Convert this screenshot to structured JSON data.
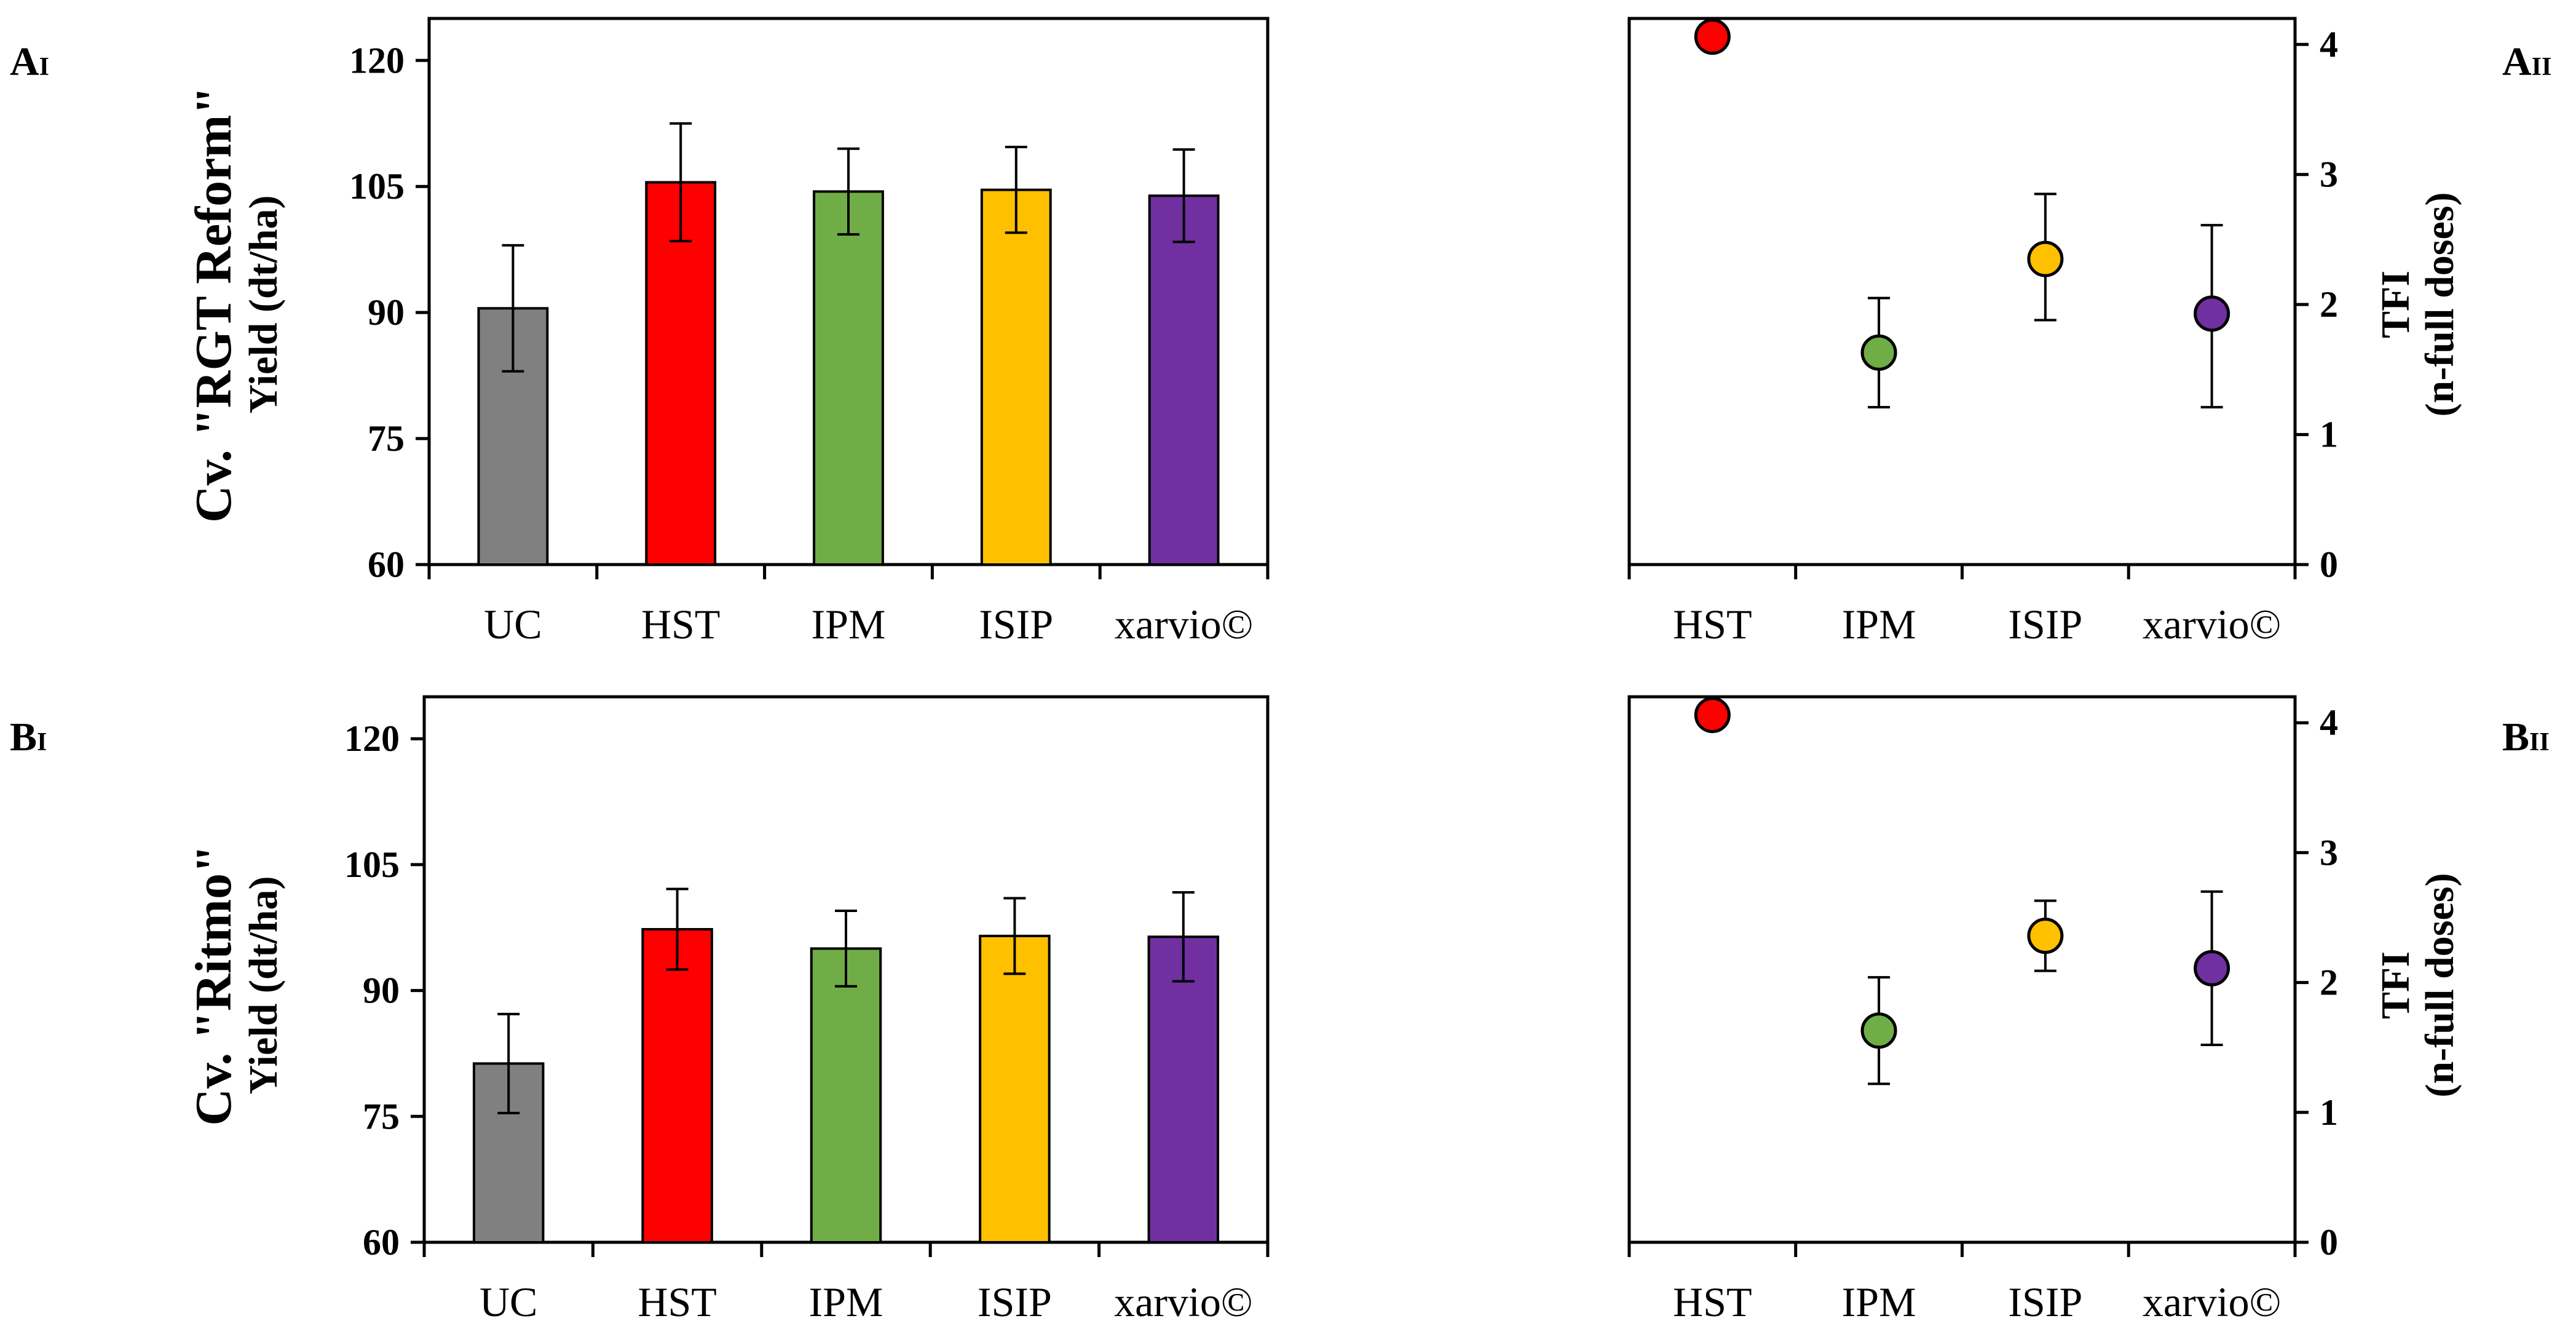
{
  "chart_data": [
    {
      "panel": "A",
      "panel_sub": "I",
      "type": "bar",
      "categories": [
        "UC",
        "HST",
        "IPM",
        "ISIP",
        "xarvio©"
      ],
      "values": [
        90.5,
        105.5,
        104.4,
        104.6,
        103.9
      ],
      "errors": [
        7.5,
        7.0,
        5.1,
        5.1,
        5.5
      ],
      "colors": [
        "#808080",
        "#FF0000",
        "#70AD47",
        "#FFC000",
        "#7030A0"
      ],
      "ylim": [
        60,
        125
      ],
      "yticks": [
        "60",
        "75",
        "90",
        "105",
        "120"
      ],
      "ylabel_line1": "Cv. \"RGT Reform\"",
      "ylabel_line2": "Yield (dt/ha)",
      "xlabel": ""
    },
    {
      "panel": "A",
      "panel_sub": "II",
      "type": "scatter",
      "categories": [
        "HST",
        "IPM",
        "ISIP",
        "xarvio©"
      ],
      "values": [
        4.06,
        1.63,
        2.35,
        1.93
      ],
      "errors_low": [
        0.0,
        0.42,
        0.47,
        0.72
      ],
      "errors_high": [
        0.0,
        0.42,
        0.5,
        0.68
      ],
      "colors": [
        "#FF0000",
        "#70AD47",
        "#FFC000",
        "#7030A0"
      ],
      "ylim": [
        0,
        4.2
      ],
      "yticks": [
        "0",
        "1",
        "2",
        "3",
        "4"
      ],
      "ylabel_line1": "TFI",
      "ylabel_line2": "(n-full doses)",
      "xlabel": ""
    },
    {
      "panel": "B",
      "panel_sub": "I",
      "type": "bar",
      "categories": [
        "UC",
        "HST",
        "IPM",
        "ISIP",
        "xarvio©"
      ],
      "values": [
        81.3,
        97.3,
        95.0,
        96.5,
        96.4
      ],
      "errors": [
        5.9,
        4.8,
        4.5,
        4.5,
        5.3
      ],
      "colors": [
        "#808080",
        "#FF0000",
        "#70AD47",
        "#FFC000",
        "#7030A0"
      ],
      "ylim": [
        60,
        125
      ],
      "yticks": [
        "60",
        "75",
        "90",
        "105",
        "120"
      ],
      "ylabel_line1": "Cv. \"Ritmo\"",
      "ylabel_line2": "Yield (dt/ha)",
      "xlabel": ""
    },
    {
      "panel": "B",
      "panel_sub": "II",
      "type": "scatter",
      "categories": [
        "HST",
        "IPM",
        "ISIP",
        "xarvio©"
      ],
      "values": [
        4.06,
        1.63,
        2.36,
        2.11
      ],
      "errors_low": [
        0.0,
        0.41,
        0.27,
        0.59
      ],
      "errors_high": [
        0.0,
        0.41,
        0.27,
        0.59
      ],
      "colors": [
        "#FF0000",
        "#70AD47",
        "#FFC000",
        "#7030A0"
      ],
      "ylim": [
        0,
        4.2
      ],
      "yticks": [
        "0",
        "1",
        "2",
        "3",
        "4"
      ],
      "ylabel_line1": "TFI",
      "ylabel_line2": "(n-full doses)",
      "xlabel": ""
    }
  ]
}
